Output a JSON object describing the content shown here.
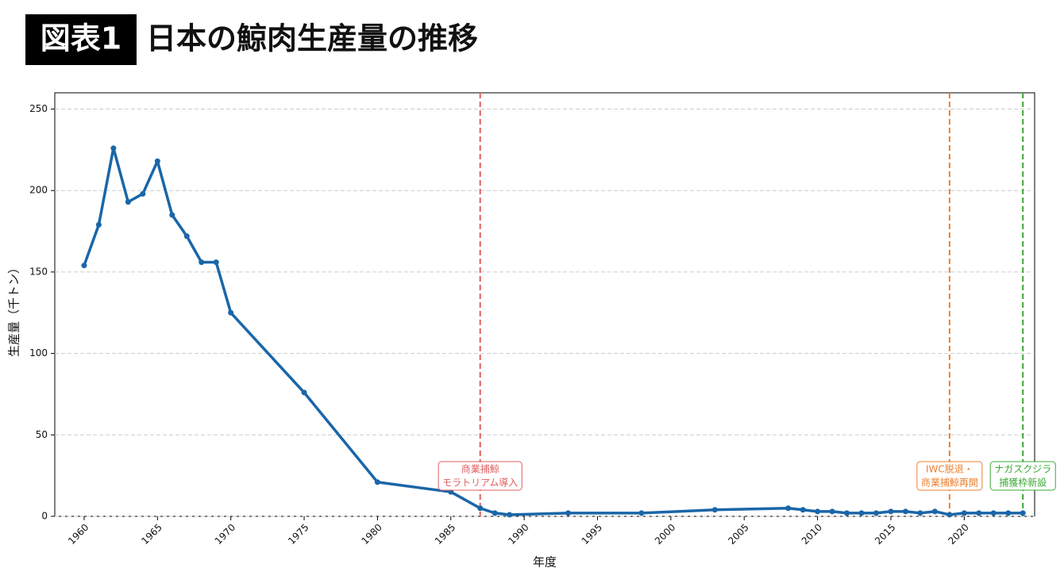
{
  "figure_label": "図表1",
  "chart_data": {
    "type": "line",
    "title": "日本の鯨肉生産量の推移",
    "x_label": "年度",
    "y_label": "生産量（千トン）",
    "x": [
      1960,
      1961,
      1962,
      1963,
      1964,
      1965,
      1966,
      1967,
      1968,
      1969,
      1970,
      1975,
      1980,
      1985,
      1987,
      1988,
      1989,
      1993,
      1998,
      2003,
      2008,
      2009,
      2010,
      2011,
      2012,
      2013,
      2014,
      2015,
      2016,
      2017,
      2018,
      2019,
      2020,
      2021,
      2022,
      2023,
      2024
    ],
    "series": [
      {
        "color": "#1a66a8",
        "values": [
          154,
          179,
          226,
          193,
          198,
          218,
          185,
          172,
          156,
          156,
          125,
          76,
          21,
          15,
          5,
          2,
          1,
          2,
          2,
          4,
          5,
          4,
          3,
          3,
          2,
          2,
          2,
          3,
          3,
          2,
          3,
          1,
          2,
          2,
          2,
          2,
          2
        ]
      }
    ],
    "xlim": [
      1958,
      2024.8
    ],
    "xticks": [
      1960,
      1965,
      1970,
      1975,
      1980,
      1985,
      1990,
      1995,
      2000,
      2005,
      2010,
      2015,
      2020
    ],
    "ylim": [
      0,
      260
    ],
    "yticks": [
      0,
      50,
      100,
      150,
      200,
      250
    ],
    "grid": true,
    "events": [
      {
        "x": 1987,
        "label": [
          "商業捕鯨",
          "モラトリアム導入"
        ],
        "color": "#e06060"
      },
      {
        "x": 2019,
        "label": [
          "IWC脱退・",
          "商業捕鯨再開"
        ],
        "color": "#ee8030"
      },
      {
        "x": 2024,
        "label": [
          "ナガスクジラ",
          "捕獲枠新設"
        ],
        "color": "#3aaa35"
      }
    ]
  }
}
